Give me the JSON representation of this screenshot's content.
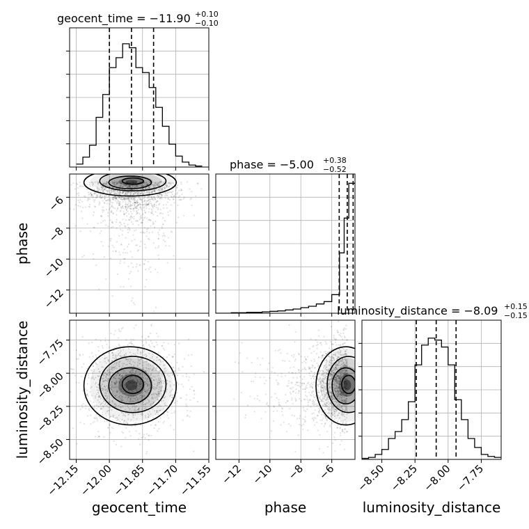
{
  "chart_data": {
    "type": "corner",
    "parameters": [
      "geocent_time",
      "phase",
      "luminosity_distance"
    ],
    "titles": {
      "geocent_time": {
        "prefix": "geocent_time = ",
        "median": "−11.90",
        "plus": "+0.10",
        "minus": "−0.10"
      },
      "phase": {
        "prefix": "phase = ",
        "median": "−5.00",
        "plus": "+0.38",
        "minus": "−0.52"
      },
      "luminosity_distance": {
        "prefix": "luminosity_distance = ",
        "median": "−8.09",
        "plus": "+0.15",
        "minus": "−0.15"
      }
    },
    "axis_labels": {
      "geocent_time": "geocent_time",
      "phase": "phase",
      "luminosity_distance": "luminosity_distance"
    },
    "ranges": {
      "geocent_time": [
        -12.18,
        -11.55
      ],
      "phase": [
        -13.5,
        -4.5
      ],
      "luminosity_distance": [
        -8.65,
        -7.6
      ]
    },
    "ticks": {
      "geocent_time": [
        {
          "v": -12.15,
          "label": "−12.15"
        },
        {
          "v": -12.0,
          "label": "−12.00"
        },
        {
          "v": -11.85,
          "label": "−11.85"
        },
        {
          "v": -11.7,
          "label": "−11.70"
        },
        {
          "v": -11.55,
          "label": "−11.55"
        }
      ],
      "phase": [
        {
          "v": -12,
          "label": "−12"
        },
        {
          "v": -10,
          "label": "−10"
        },
        {
          "v": -8,
          "label": "−8"
        },
        {
          "v": -6,
          "label": "−6"
        }
      ],
      "luminosity_distance": [
        {
          "v": -8.5,
          "label": "−8.50"
        },
        {
          "v": -8.25,
          "label": "−8.25"
        },
        {
          "v": -8.0,
          "label": "−8.00"
        },
        {
          "v": -7.75,
          "label": "−7.75"
        }
      ]
    },
    "quantiles": {
      "geocent_time": [
        -12.0,
        -11.9,
        -11.8
      ],
      "phase": [
        -5.52,
        -5.0,
        -4.62
      ],
      "luminosity_distance": [
        -8.24,
        -8.09,
        -7.94
      ]
    },
    "histograms": {
      "geocent_time": {
        "edges": [
          -12.15,
          -12.12,
          -12.09,
          -12.06,
          -12.03,
          -12.0,
          -11.97,
          -11.94,
          -11.91,
          -11.88,
          -11.85,
          -11.82,
          -11.79,
          -11.76,
          -11.73,
          -11.7,
          -11.67,
          -11.64,
          -11.61,
          -11.58
        ],
        "counts": [
          3,
          10,
          22,
          50,
          73,
          100,
          110,
          124,
          120,
          100,
          95,
          80,
          60,
          41,
          23,
          11,
          5,
          2,
          1
        ],
        "ymax": 140
      },
      "phase": {
        "edges": [
          -13.5,
          -13.0,
          -12.5,
          -12.0,
          -11.5,
          -11.0,
          -10.5,
          -10.0,
          -9.5,
          -9.0,
          -8.5,
          -8.0,
          -7.5,
          -7.0,
          -6.5,
          -6.0,
          -5.5,
          -5.2,
          -4.9,
          -4.5
        ],
        "counts": [
          0,
          0,
          1,
          1,
          2,
          2,
          3,
          4,
          5,
          7,
          9,
          12,
          15,
          20,
          25,
          40,
          130,
          205,
          280
        ],
        "ymax": 300
      },
      "luminosity_distance": {
        "edges": [
          -8.65,
          -8.6,
          -8.55,
          -8.5,
          -8.45,
          -8.4,
          -8.35,
          -8.3,
          -8.25,
          -8.2,
          -8.15,
          -8.1,
          -8.05,
          -8.0,
          -7.95,
          -7.9,
          -7.85,
          -7.8,
          -7.75,
          -7.7,
          -7.65,
          -7.6
        ],
        "counts": [
          1,
          2,
          5,
          10,
          21,
          28,
          40,
          58,
          95,
          115,
          122,
          120,
          113,
          95,
          60,
          40,
          21,
          12,
          5,
          3,
          2
        ],
        "ymax": 140
      }
    },
    "pairs": [
      {
        "x": "geocent_time",
        "y": "phase",
        "center": [
          -11.9,
          -5.0
        ],
        "spread": [
          0.1,
          0.5
        ]
      },
      {
        "x": "geocent_time",
        "y": "luminosity_distance",
        "center": [
          -11.9,
          -8.09
        ],
        "spread": [
          0.1,
          0.15
        ]
      },
      {
        "x": "phase",
        "y": "luminosity_distance",
        "center": [
          -5.0,
          -8.09
        ],
        "spread": [
          0.5,
          0.15
        ]
      }
    ],
    "grid": true,
    "scatter_color": "#000000",
    "line_color": "#000000"
  }
}
